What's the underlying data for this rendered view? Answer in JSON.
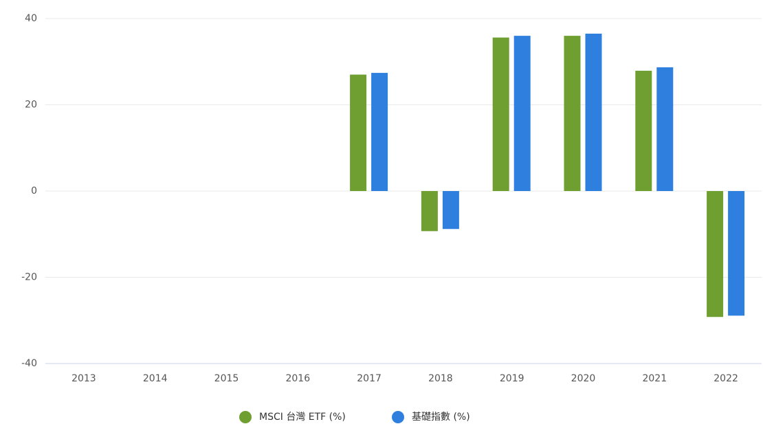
{
  "chart_data": {
    "type": "bar",
    "categories": [
      "2013",
      "2014",
      "2015",
      "2016",
      "2017",
      "2018",
      "2019",
      "2020",
      "2021",
      "2022"
    ],
    "series": [
      {
        "name": "MSCI 台灣 ETF (%)",
        "color": "#6f9e31",
        "values": [
          null,
          null,
          null,
          null,
          27.0,
          -9.3,
          35.6,
          36.0,
          27.9,
          -29.2
        ]
      },
      {
        "name": "基礎指數 (%)",
        "color": "#2f7fdf",
        "values": [
          null,
          null,
          null,
          null,
          27.4,
          -8.8,
          36.0,
          36.5,
          28.7,
          -28.9
        ]
      }
    ],
    "ylim": [
      -40,
      40
    ],
    "yticks": [
      -40,
      -20,
      0,
      20,
      40
    ],
    "grid": true,
    "legend": "bottom"
  }
}
